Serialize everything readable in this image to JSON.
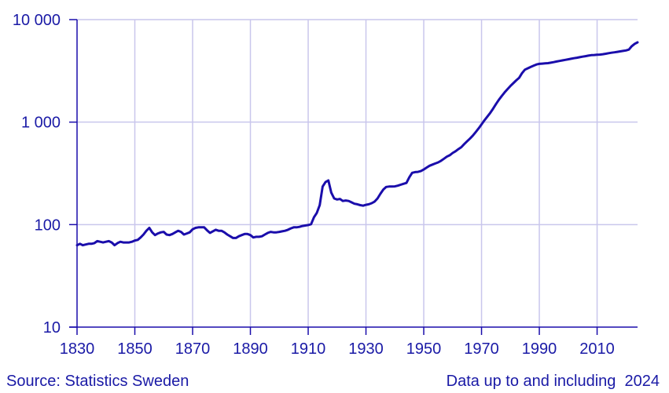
{
  "chart_data": {
    "type": "line",
    "title": "",
    "xlabel": "",
    "ylabel": "",
    "y_scale": "log",
    "xlim": [
      1830,
      2024
    ],
    "ylim": [
      10,
      10000
    ],
    "x_ticks": [
      1830,
      1850,
      1870,
      1890,
      1910,
      1930,
      1950,
      1970,
      1990,
      2010
    ],
    "y_ticks": [
      {
        "value": 10,
        "label": "10"
      },
      {
        "value": 100,
        "label": "100"
      },
      {
        "value": 1000,
        "label": "1 000"
      },
      {
        "value": 10000,
        "label": "10 000"
      }
    ],
    "grid": true,
    "series": [
      {
        "name": "",
        "color": "#1a0dab",
        "points": [
          [
            1830,
            63
          ],
          [
            1831,
            65
          ],
          [
            1832,
            63
          ],
          [
            1833,
            64
          ],
          [
            1834,
            65
          ],
          [
            1835,
            65
          ],
          [
            1836,
            66
          ],
          [
            1837,
            69
          ],
          [
            1838,
            68
          ],
          [
            1839,
            67
          ],
          [
            1840,
            68
          ],
          [
            1841,
            69
          ],
          [
            1842,
            67
          ],
          [
            1843,
            63
          ],
          [
            1844,
            66
          ],
          [
            1845,
            68
          ],
          [
            1846,
            67
          ],
          [
            1847,
            67
          ],
          [
            1848,
            67
          ],
          [
            1849,
            68
          ],
          [
            1850,
            70
          ],
          [
            1851,
            71
          ],
          [
            1852,
            75
          ],
          [
            1853,
            80
          ],
          [
            1854,
            87
          ],
          [
            1855,
            93
          ],
          [
            1856,
            84
          ],
          [
            1857,
            79
          ],
          [
            1858,
            82
          ],
          [
            1859,
            84
          ],
          [
            1860,
            85
          ],
          [
            1861,
            80
          ],
          [
            1862,
            79
          ],
          [
            1863,
            81
          ],
          [
            1864,
            84
          ],
          [
            1865,
            87
          ],
          [
            1866,
            85
          ],
          [
            1867,
            80
          ],
          [
            1868,
            82
          ],
          [
            1869,
            84
          ],
          [
            1870,
            90
          ],
          [
            1871,
            93
          ],
          [
            1872,
            94
          ],
          [
            1873,
            94
          ],
          [
            1874,
            94
          ],
          [
            1875,
            88
          ],
          [
            1876,
            83
          ],
          [
            1877,
            86
          ],
          [
            1878,
            89
          ],
          [
            1879,
            87
          ],
          [
            1880,
            87
          ],
          [
            1881,
            84
          ],
          [
            1882,
            80
          ],
          [
            1883,
            77
          ],
          [
            1884,
            74
          ],
          [
            1885,
            74
          ],
          [
            1886,
            77
          ],
          [
            1887,
            79
          ],
          [
            1888,
            81
          ],
          [
            1889,
            81
          ],
          [
            1890,
            79
          ],
          [
            1891,
            75
          ],
          [
            1892,
            76
          ],
          [
            1893,
            76
          ],
          [
            1894,
            77
          ],
          [
            1895,
            80
          ],
          [
            1896,
            83
          ],
          [
            1897,
            85
          ],
          [
            1898,
            84
          ],
          [
            1899,
            84
          ],
          [
            1900,
            85
          ],
          [
            1901,
            86
          ],
          [
            1902,
            87
          ],
          [
            1903,
            89
          ],
          [
            1904,
            92
          ],
          [
            1905,
            94
          ],
          [
            1906,
            94
          ],
          [
            1907,
            95
          ],
          [
            1908,
            97
          ],
          [
            1909,
            98
          ],
          [
            1910,
            99
          ],
          [
            1911,
            101
          ],
          [
            1912,
            118
          ],
          [
            1913,
            130
          ],
          [
            1914,
            155
          ],
          [
            1915,
            235
          ],
          [
            1916,
            260
          ],
          [
            1917,
            270
          ],
          [
            1918,
            205
          ],
          [
            1919,
            180
          ],
          [
            1920,
            176
          ],
          [
            1921,
            178
          ],
          [
            1922,
            170
          ],
          [
            1923,
            172
          ],
          [
            1924,
            170
          ],
          [
            1925,
            165
          ],
          [
            1926,
            160
          ],
          [
            1927,
            158
          ],
          [
            1928,
            155
          ],
          [
            1929,
            153
          ],
          [
            1930,
            156
          ],
          [
            1931,
            158
          ],
          [
            1932,
            162
          ],
          [
            1933,
            168
          ],
          [
            1934,
            180
          ],
          [
            1935,
            200
          ],
          [
            1936,
            220
          ],
          [
            1937,
            233
          ],
          [
            1938,
            235
          ],
          [
            1939,
            235
          ],
          [
            1940,
            236
          ],
          [
            1941,
            240
          ],
          [
            1942,
            245
          ],
          [
            1943,
            250
          ],
          [
            1944,
            255
          ],
          [
            1945,
            290
          ],
          [
            1946,
            320
          ],
          [
            1947,
            325
          ],
          [
            1948,
            327
          ],
          [
            1949,
            333
          ],
          [
            1950,
            345
          ],
          [
            1951,
            360
          ],
          [
            1952,
            375
          ],
          [
            1953,
            385
          ],
          [
            1954,
            395
          ],
          [
            1955,
            405
          ],
          [
            1956,
            420
          ],
          [
            1957,
            440
          ],
          [
            1958,
            460
          ],
          [
            1959,
            475
          ],
          [
            1960,
            500
          ],
          [
            1961,
            520
          ],
          [
            1962,
            545
          ],
          [
            1963,
            570
          ],
          [
            1964,
            610
          ],
          [
            1965,
            650
          ],
          [
            1966,
            690
          ],
          [
            1967,
            740
          ],
          [
            1968,
            800
          ],
          [
            1969,
            870
          ],
          [
            1970,
            950
          ],
          [
            1971,
            1040
          ],
          [
            1972,
            1130
          ],
          [
            1973,
            1230
          ],
          [
            1974,
            1350
          ],
          [
            1975,
            1500
          ],
          [
            1976,
            1650
          ],
          [
            1977,
            1800
          ],
          [
            1978,
            1950
          ],
          [
            1979,
            2100
          ],
          [
            1980,
            2250
          ],
          [
            1981,
            2400
          ],
          [
            1982,
            2550
          ],
          [
            1983,
            2700
          ],
          [
            1984,
            3000
          ],
          [
            1985,
            3250
          ],
          [
            1986,
            3350
          ],
          [
            1987,
            3450
          ],
          [
            1988,
            3550
          ],
          [
            1989,
            3650
          ],
          [
            1990,
            3700
          ],
          [
            1991,
            3720
          ],
          [
            1992,
            3740
          ],
          [
            1993,
            3760
          ],
          [
            1994,
            3800
          ],
          [
            1995,
            3850
          ],
          [
            1996,
            3900
          ],
          [
            1997,
            3950
          ],
          [
            1998,
            4000
          ],
          [
            1999,
            4050
          ],
          [
            2000,
            4100
          ],
          [
            2001,
            4150
          ],
          [
            2002,
            4200
          ],
          [
            2003,
            4250
          ],
          [
            2004,
            4300
          ],
          [
            2005,
            4350
          ],
          [
            2006,
            4400
          ],
          [
            2007,
            4450
          ],
          [
            2008,
            4500
          ],
          [
            2009,
            4520
          ],
          [
            2010,
            4540
          ],
          [
            2011,
            4560
          ],
          [
            2012,
            4600
          ],
          [
            2013,
            4650
          ],
          [
            2014,
            4700
          ],
          [
            2015,
            4750
          ],
          [
            2016,
            4800
          ],
          [
            2017,
            4850
          ],
          [
            2018,
            4900
          ],
          [
            2019,
            4950
          ],
          [
            2020,
            5000
          ],
          [
            2021,
            5100
          ],
          [
            2022,
            5500
          ],
          [
            2023,
            5800
          ],
          [
            2024,
            6000
          ]
        ]
      }
    ]
  },
  "footer": {
    "source": "Source: Statistics Sweden",
    "note": "Data up to and including  2024"
  }
}
